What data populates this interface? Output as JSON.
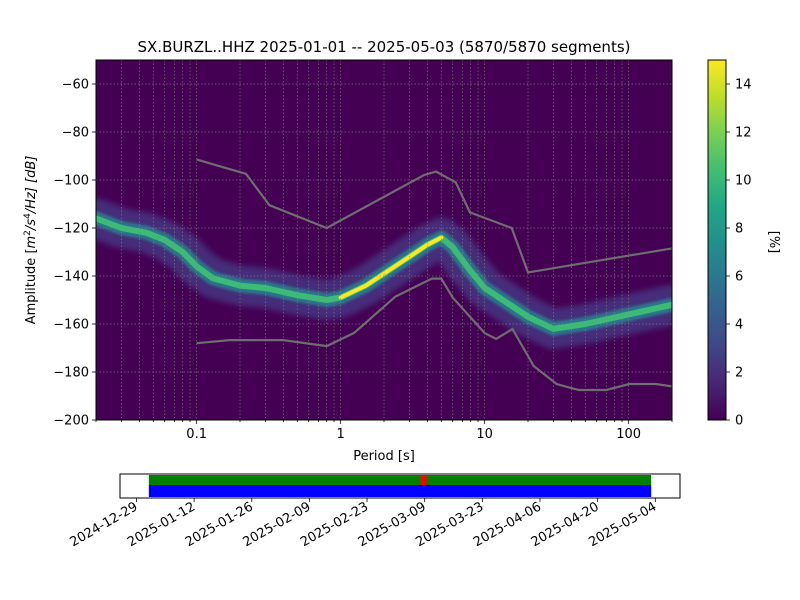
{
  "chart_data": [
    {
      "type": "heatmap",
      "title": "SX.BURZL..HHZ   2025-01-01 -- 2025-05-03  (5870/5870 segments)",
      "xlabel": "Period [s]",
      "ylabel": "Amplitude [m²/s⁴/Hz] [dB]",
      "ylabel_parts": {
        "prefix": "Amplitude [",
        "m": "m",
        "exp1": "2",
        "s": "/s",
        "exp2": "4",
        "hz": "/Hz] [dB]"
      },
      "x_scale": "log",
      "xlim": [
        0.02,
        200
      ],
      "ylim": [
        -200,
        -50
      ],
      "x_ticks": [
        {
          "value": 0.1,
          "label": "0.1"
        },
        {
          "value": 1,
          "label": "1"
        },
        {
          "value": 10,
          "label": "10"
        },
        {
          "value": 100,
          "label": "100"
        }
      ],
      "y_ticks": [
        {
          "value": -60,
          "label": "−60"
        },
        {
          "value": -80,
          "label": "−80"
        },
        {
          "value": -100,
          "label": "−100"
        },
        {
          "value": -120,
          "label": "−120"
        },
        {
          "value": -140,
          "label": "−140"
        },
        {
          "value": -160,
          "label": "−160"
        },
        {
          "value": -180,
          "label": "−180"
        },
        {
          "value": -200,
          "label": "−200"
        }
      ],
      "grid": true,
      "colormap": "viridis",
      "colorbar": {
        "label": "[%]",
        "range": [
          0,
          15
        ],
        "ticks": [
          {
            "value": 0,
            "label": "0"
          },
          {
            "value": 2,
            "label": "2"
          },
          {
            "value": 4,
            "label": "4"
          },
          {
            "value": 6,
            "label": "6"
          },
          {
            "value": 8,
            "label": "8"
          },
          {
            "value": 10,
            "label": "10"
          },
          {
            "value": 12,
            "label": "12"
          },
          {
            "value": 14,
            "label": "14"
          }
        ]
      },
      "mode_curve": [
        [
          0.02,
          -116
        ],
        [
          0.03,
          -120
        ],
        [
          0.045,
          -122
        ],
        [
          0.06,
          -125
        ],
        [
          0.08,
          -130
        ],
        [
          0.1,
          -136
        ],
        [
          0.13,
          -141
        ],
        [
          0.2,
          -144
        ],
        [
          0.3,
          -145
        ],
        [
          0.5,
          -148
        ],
        [
          0.8,
          -150
        ],
        [
          1.0,
          -149
        ],
        [
          1.5,
          -144
        ],
        [
          2,
          -139
        ],
        [
          3,
          -132
        ],
        [
          4,
          -127
        ],
        [
          5,
          -124
        ],
        [
          6,
          -128
        ],
        [
          8,
          -138
        ],
        [
          10,
          -145
        ],
        [
          15,
          -152
        ],
        [
          20,
          -157
        ],
        [
          30,
          -162
        ],
        [
          50,
          -160
        ],
        [
          100,
          -156
        ],
        [
          200,
          -152
        ]
      ],
      "nhnm": [
        [
          0.1,
          -91.5
        ],
        [
          0.22,
          -97.4
        ],
        [
          0.32,
          -110.5
        ],
        [
          0.8,
          -120
        ],
        [
          3.8,
          -97.9
        ],
        [
          4.6,
          -96.5
        ],
        [
          6.3,
          -101
        ],
        [
          7.9,
          -113.5
        ],
        [
          15.4,
          -120
        ],
        [
          20,
          -138.5
        ],
        [
          200,
          -128.5
        ]
      ],
      "nlnm": [
        [
          0.1,
          -168
        ],
        [
          0.17,
          -166.7
        ],
        [
          0.4,
          -166.7
        ],
        [
          0.8,
          -169.2
        ],
        [
          1.24,
          -163.7
        ],
        [
          2.4,
          -148.6
        ],
        [
          4.3,
          -141.1
        ],
        [
          5.0,
          -141.1
        ],
        [
          6.0,
          -149
        ],
        [
          10,
          -163.8
        ],
        [
          12,
          -166.2
        ],
        [
          15.6,
          -162.1
        ],
        [
          21.9,
          -177.5
        ],
        [
          31.6,
          -185
        ],
        [
          45,
          -187.5
        ],
        [
          70,
          -187.5
        ],
        [
          101,
          -185
        ],
        [
          154,
          -185
        ],
        [
          200,
          -186
        ]
      ]
    },
    {
      "type": "timeline",
      "x_ticks": [
        {
          "value": "2024-12-29",
          "label": "2024-12-29"
        },
        {
          "value": "2025-01-12",
          "label": "2025-01-12"
        },
        {
          "value": "2025-01-26",
          "label": "2025-01-26"
        },
        {
          "value": "2025-02-09",
          "label": "2025-02-09"
        },
        {
          "value": "2025-02-23",
          "label": "2025-02-23"
        },
        {
          "value": "2025-03-09",
          "label": "2025-03-09"
        },
        {
          "value": "2025-03-23",
          "label": "2025-03-23"
        },
        {
          "value": "2025-04-06",
          "label": "2025-04-06"
        },
        {
          "value": "2025-04-20",
          "label": "2025-04-20"
        },
        {
          "value": "2025-05-04",
          "label": "2025-05-04"
        }
      ],
      "xlim": [
        "2024-12-25",
        "2025-05-10"
      ],
      "coverage": [
        "2025-01-01",
        "2025-05-03"
      ],
      "gaps": [
        [
          "2025-03-08",
          "2025-03-09"
        ]
      ],
      "colors": {
        "data": "#008000",
        "coverage": "#0000ff",
        "gap": "#ff0000"
      }
    }
  ]
}
